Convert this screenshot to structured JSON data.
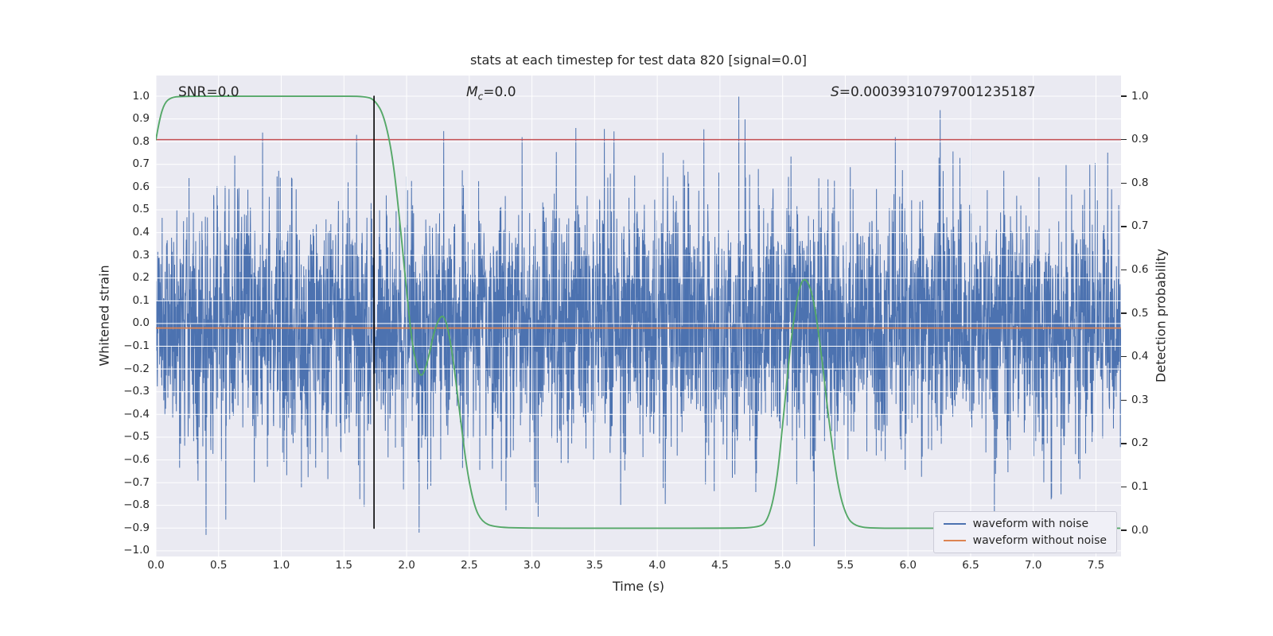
{
  "chart_data": {
    "type": "line",
    "title": "stats at each timestep for test data 820 [signal=0.0]",
    "xlabel": "Time (s)",
    "ylabel_left": "Whitened strain",
    "ylabel_right": "Detection probability",
    "xlim": [
      0.0,
      7.7
    ],
    "ylim_left": [
      -1.025,
      1.091
    ],
    "right_axis_map": {
      "prob0_at_strain": -0.91,
      "prob1_at_strain": 1.0
    },
    "grid": true,
    "colors": {
      "figure_bg": "#ffffff",
      "plot_bg": "#EAEAF2",
      "grid": "#ffffff",
      "text": "#262626",
      "blue": "#4C72B0",
      "orange": "#DD8452",
      "green": "#55A868",
      "red": "#C44E52",
      "black": "#000000"
    },
    "xticks": {
      "values": [
        0.0,
        0.5,
        1.0,
        1.5,
        2.0,
        2.5,
        3.0,
        3.5,
        4.0,
        4.5,
        5.0,
        5.5,
        6.0,
        6.5,
        7.0,
        7.5
      ],
      "labels": [
        "0.0",
        "0.5",
        "1.0",
        "1.5",
        "2.0",
        "2.5",
        "3.0",
        "3.5",
        "4.0",
        "4.5",
        "5.0",
        "5.5",
        "6.0",
        "6.5",
        "7.0",
        "7.5"
      ]
    },
    "yticks_left": {
      "values": [
        -1.0,
        -0.9,
        -0.8,
        -0.7,
        -0.6,
        -0.5,
        -0.4,
        -0.3,
        -0.2,
        -0.1,
        0.0,
        0.1,
        0.2,
        0.3,
        0.4,
        0.5,
        0.6,
        0.7,
        0.8,
        0.9,
        1.0
      ],
      "labels": [
        "−1.0",
        "−0.9",
        "−0.8",
        "−0.7",
        "−0.6",
        "−0.5",
        "−0.4",
        "−0.3",
        "−0.2",
        "−0.1",
        "0.0",
        "0.1",
        "0.2",
        "0.3",
        "0.4",
        "0.5",
        "0.6",
        "0.7",
        "0.8",
        "0.9",
        "1.0"
      ]
    },
    "yticks_right": {
      "values": [
        0.0,
        0.1,
        0.2,
        0.3,
        0.4,
        0.5,
        0.6,
        0.7,
        0.8,
        0.9,
        1.0
      ],
      "labels": [
        "0.0",
        "0.1",
        "0.2",
        "0.3",
        "0.4",
        "0.5",
        "0.6",
        "0.7",
        "0.8",
        "0.9",
        "1.0"
      ]
    },
    "annotations": {
      "snr": {
        "text": "SNR=0.0"
      },
      "chirp_mass": {
        "main": "M",
        "sub": "c",
        "rest": "=0.0"
      },
      "s_stat": {
        "main": "S",
        "rest": "=0.00039310797001235187"
      }
    },
    "series": [
      {
        "name": "waveform with noise",
        "style": "noise",
        "axis": "left",
        "color": "#4C72B0",
        "n": 4200,
        "mean": 0.0,
        "std": 0.27,
        "clip": [
          -0.98,
          1.0
        ],
        "seed": 820,
        "spikes": [
          [
            0.4,
            -0.93
          ],
          [
            0.85,
            0.84
          ],
          [
            1.6,
            0.83
          ],
          [
            2.1,
            -0.92
          ],
          [
            3.05,
            -0.85
          ],
          [
            3.35,
            0.86
          ],
          [
            4.65,
            1.0
          ],
          [
            4.7,
            0.9
          ],
          [
            5.9,
            0.82
          ],
          [
            6.5,
            0.83
          ],
          [
            7.45,
            0.7
          ]
        ]
      },
      {
        "name": "waveform without noise",
        "style": "hline",
        "axis": "left",
        "color": "#DD8452",
        "value": -0.02
      },
      {
        "name": "detection threshold",
        "style": "hline",
        "axis": "right",
        "color": "#C44E52",
        "value": 0.9
      },
      {
        "name": "detection probability",
        "style": "curve",
        "axis": "right",
        "color": "#55A868",
        "points": [
          [
            0.0,
            0.9
          ],
          [
            0.03,
            0.95
          ],
          [
            0.07,
            0.985
          ],
          [
            0.12,
            0.997
          ],
          [
            0.2,
            1.0
          ],
          [
            0.6,
            1.0
          ],
          [
            1.0,
            1.0
          ],
          [
            1.4,
            1.0
          ],
          [
            1.68,
            1.0
          ],
          [
            1.75,
            0.99
          ],
          [
            1.82,
            0.955
          ],
          [
            1.89,
            0.86
          ],
          [
            1.95,
            0.7
          ],
          [
            2.0,
            0.55
          ],
          [
            2.04,
            0.44
          ],
          [
            2.08,
            0.375
          ],
          [
            2.12,
            0.35
          ],
          [
            2.17,
            0.39
          ],
          [
            2.22,
            0.46
          ],
          [
            2.27,
            0.495
          ],
          [
            2.31,
            0.49
          ],
          [
            2.36,
            0.42
          ],
          [
            2.42,
            0.28
          ],
          [
            2.48,
            0.14
          ],
          [
            2.54,
            0.055
          ],
          [
            2.6,
            0.02
          ],
          [
            2.7,
            0.007
          ],
          [
            3.0,
            0.005
          ],
          [
            3.5,
            0.005
          ],
          [
            4.0,
            0.005
          ],
          [
            4.5,
            0.005
          ],
          [
            4.8,
            0.006
          ],
          [
            4.88,
            0.02
          ],
          [
            4.95,
            0.1
          ],
          [
            5.01,
            0.27
          ],
          [
            5.07,
            0.45
          ],
          [
            5.13,
            0.56
          ],
          [
            5.18,
            0.585
          ],
          [
            5.24,
            0.545
          ],
          [
            5.3,
            0.43
          ],
          [
            5.37,
            0.25
          ],
          [
            5.44,
            0.1
          ],
          [
            5.51,
            0.03
          ],
          [
            5.58,
            0.01
          ],
          [
            5.7,
            0.005
          ],
          [
            6.0,
            0.005
          ],
          [
            6.5,
            0.005
          ],
          [
            7.0,
            0.005
          ],
          [
            7.4,
            0.005
          ],
          [
            7.69,
            0.005
          ]
        ]
      },
      {
        "name": "time marker",
        "style": "vline",
        "axis": "right",
        "color": "#000000",
        "x": 1.74,
        "y_from": 0.005,
        "y_to": 1.0
      }
    ],
    "legend": {
      "position": "lower right",
      "entries": [
        {
          "label": "waveform with noise",
          "color": "#4C72B0"
        },
        {
          "label": "waveform without noise",
          "color": "#DD8452"
        }
      ]
    }
  }
}
